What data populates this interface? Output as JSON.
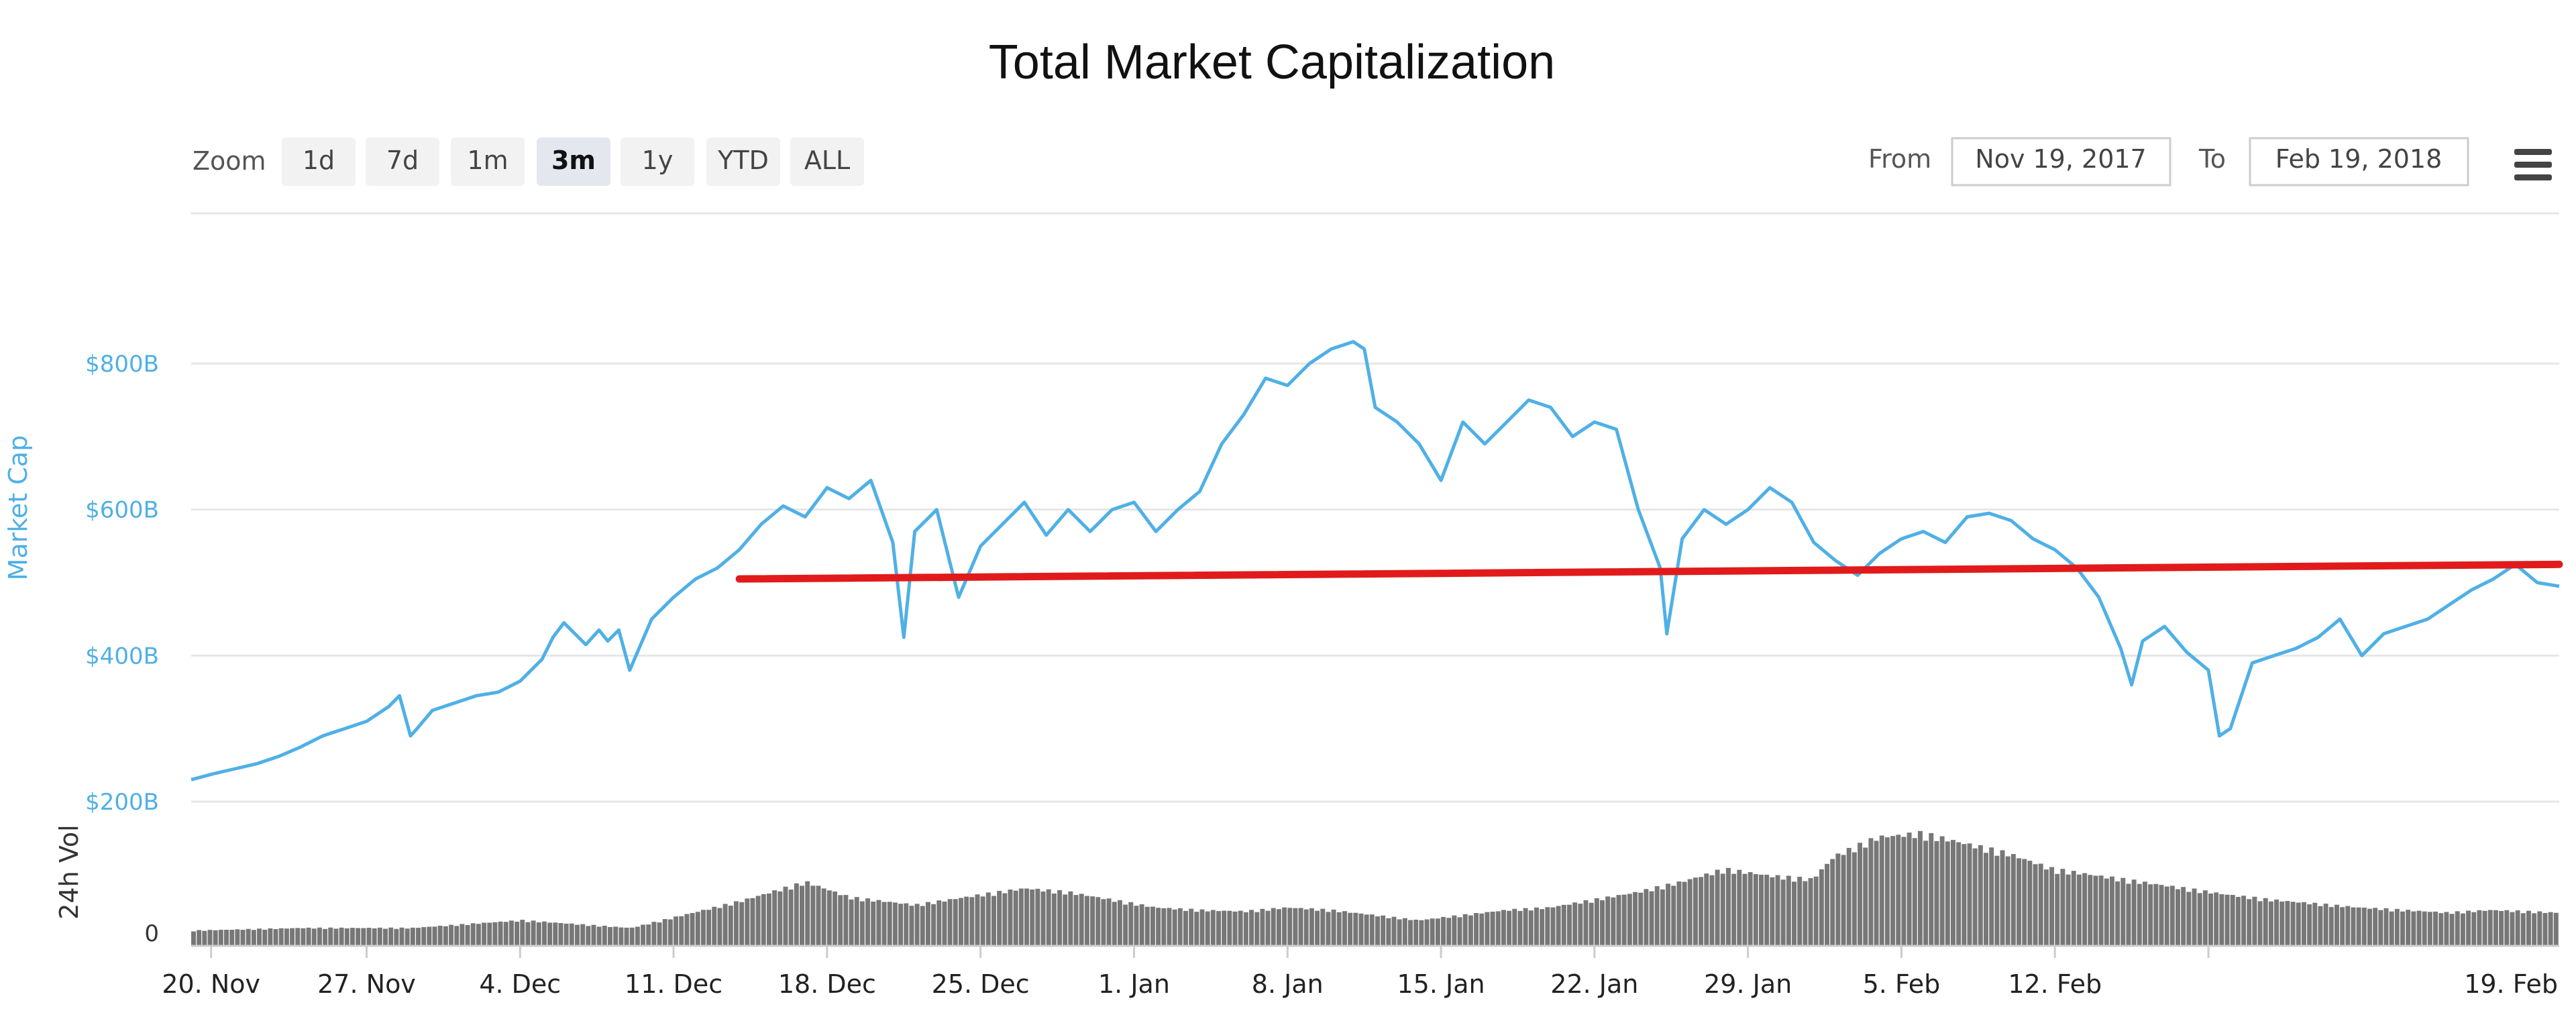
{
  "chart_data": {
    "type": "line",
    "title": "Total Market Capitalization",
    "zoom": {
      "label": "Zoom",
      "buttons": [
        "1d",
        "7d",
        "1m",
        "3m",
        "1y",
        "YTD",
        "ALL"
      ],
      "active": "3m"
    },
    "range": {
      "from_label": "From",
      "from_value": "Nov 19, 2017",
      "to_label": "To",
      "to_value": "Feb 19, 2018"
    },
    "x_ticks": [
      "20. Nov",
      "27. Nov",
      "4. Dec",
      "11. Dec",
      "18. Dec",
      "25. Dec",
      "1. Jan",
      "8. Jan",
      "15. Jan",
      "22. Jan",
      "29. Jan",
      "5. Feb",
      "12. Feb",
      "19. Feb"
    ],
    "market_cap": {
      "axis_title": "Market Cap",
      "y_ticks": [
        "$200B",
        "$400B",
        "$600B",
        "$800B"
      ],
      "ylim": [
        200,
        800
      ],
      "color": "#4fb0e6",
      "unit": "B USD",
      "points": [
        [
          0,
          230
        ],
        [
          1,
          238
        ],
        [
          2,
          245
        ],
        [
          3,
          252
        ],
        [
          4,
          262
        ],
        [
          5,
          275
        ],
        [
          6,
          290
        ],
        [
          7,
          300
        ],
        [
          8,
          310
        ],
        [
          9,
          330
        ],
        [
          9.5,
          345
        ],
        [
          10,
          290
        ],
        [
          10.3,
          300
        ],
        [
          11,
          325
        ],
        [
          12,
          335
        ],
        [
          13,
          345
        ],
        [
          14,
          350
        ],
        [
          15,
          365
        ],
        [
          16,
          395
        ],
        [
          16.5,
          425
        ],
        [
          17,
          445
        ],
        [
          18,
          415
        ],
        [
          18.6,
          435
        ],
        [
          19,
          420
        ],
        [
          19.5,
          435
        ],
        [
          20,
          380
        ],
        [
          21,
          450
        ],
        [
          22,
          480
        ],
        [
          23,
          505
        ],
        [
          24,
          520
        ],
        [
          25,
          545
        ],
        [
          26,
          580
        ],
        [
          27,
          605
        ],
        [
          28,
          590
        ],
        [
          29,
          630
        ],
        [
          30,
          615
        ],
        [
          31,
          640
        ],
        [
          32,
          555
        ],
        [
          32.5,
          425
        ],
        [
          33,
          570
        ],
        [
          34,
          600
        ],
        [
          35,
          480
        ],
        [
          36,
          550
        ],
        [
          37,
          580
        ],
        [
          38,
          610
        ],
        [
          39,
          565
        ],
        [
          40,
          600
        ],
        [
          41,
          570
        ],
        [
          42,
          600
        ],
        [
          43,
          610
        ],
        [
          44,
          570
        ],
        [
          45,
          600
        ],
        [
          46,
          625
        ],
        [
          47,
          690
        ],
        [
          48,
          730
        ],
        [
          49,
          780
        ],
        [
          50,
          770
        ],
        [
          51,
          800
        ],
        [
          52,
          820
        ],
        [
          53,
          830
        ],
        [
          53.5,
          820
        ],
        [
          54,
          740
        ],
        [
          55,
          720
        ],
        [
          56,
          690
        ],
        [
          57,
          640
        ],
        [
          58,
          720
        ],
        [
          59,
          690
        ],
        [
          60,
          720
        ],
        [
          61,
          750
        ],
        [
          62,
          740
        ],
        [
          63,
          700
        ],
        [
          64,
          720
        ],
        [
          65,
          710
        ],
        [
          66,
          600
        ],
        [
          67,
          520
        ],
        [
          67.3,
          430
        ],
        [
          68,
          560
        ],
        [
          69,
          600
        ],
        [
          70,
          580
        ],
        [
          71,
          600
        ],
        [
          72,
          630
        ],
        [
          73,
          610
        ],
        [
          74,
          555
        ],
        [
          75,
          530
        ],
        [
          76,
          510
        ],
        [
          77,
          540
        ],
        [
          78,
          560
        ],
        [
          79,
          570
        ],
        [
          80,
          555
        ],
        [
          81,
          590
        ],
        [
          82,
          595
        ],
        [
          83,
          585
        ],
        [
          84,
          560
        ],
        [
          85,
          545
        ],
        [
          86,
          520
        ],
        [
          87,
          480
        ],
        [
          88,
          410
        ],
        [
          88.5,
          360
        ],
        [
          89,
          420
        ],
        [
          90,
          440
        ],
        [
          91,
          405
        ],
        [
          92,
          380
        ],
        [
          92.5,
          290
        ],
        [
          93,
          300
        ],
        [
          94,
          390
        ],
        [
          95,
          400
        ],
        [
          96,
          410
        ],
        [
          97,
          425
        ],
        [
          98,
          450
        ],
        [
          99,
          400
        ],
        [
          100,
          430
        ],
        [
          101,
          440
        ],
        [
          102,
          450
        ],
        [
          103,
          470
        ],
        [
          104,
          490
        ],
        [
          105,
          505
        ],
        [
          106,
          525
        ],
        [
          107,
          500
        ],
        [
          108,
          495
        ]
      ]
    },
    "volume": {
      "axis_title": "24h Vol",
      "y_ticks": [
        "0"
      ],
      "color": "#777777",
      "points": [
        [
          0,
          12
        ],
        [
          5,
          14
        ],
        [
          10,
          14
        ],
        [
          15,
          20
        ],
        [
          20,
          14
        ],
        [
          25,
          35
        ],
        [
          28,
          50
        ],
        [
          30,
          38
        ],
        [
          33,
          32
        ],
        [
          36,
          40
        ],
        [
          38,
          45
        ],
        [
          40,
          42
        ],
        [
          42,
          36
        ],
        [
          44,
          30
        ],
        [
          46,
          28
        ],
        [
          48,
          27
        ],
        [
          50,
          30
        ],
        [
          52,
          28
        ],
        [
          54,
          24
        ],
        [
          56,
          20
        ],
        [
          58,
          24
        ],
        [
          60,
          28
        ],
        [
          62,
          30
        ],
        [
          64,
          36
        ],
        [
          66,
          42
        ],
        [
          68,
          50
        ],
        [
          70,
          60
        ],
        [
          72,
          55
        ],
        [
          74,
          52
        ],
        [
          75,
          70
        ],
        [
          77,
          85
        ],
        [
          79,
          88
        ],
        [
          81,
          80
        ],
        [
          83,
          72
        ],
        [
          85,
          60
        ],
        [
          87,
          55
        ],
        [
          89,
          50
        ],
        [
          91,
          45
        ],
        [
          93,
          40
        ],
        [
          95,
          36
        ],
        [
          97,
          33
        ],
        [
          99,
          30
        ],
        [
          101,
          28
        ],
        [
          103,
          26
        ],
        [
          105,
          28
        ],
        [
          108,
          26
        ]
      ]
    },
    "trendline": {
      "color": "#e11b1b",
      "from": [
        25,
        505
      ],
      "to": [
        108,
        525
      ]
    },
    "grid": true,
    "legend": "none"
  }
}
